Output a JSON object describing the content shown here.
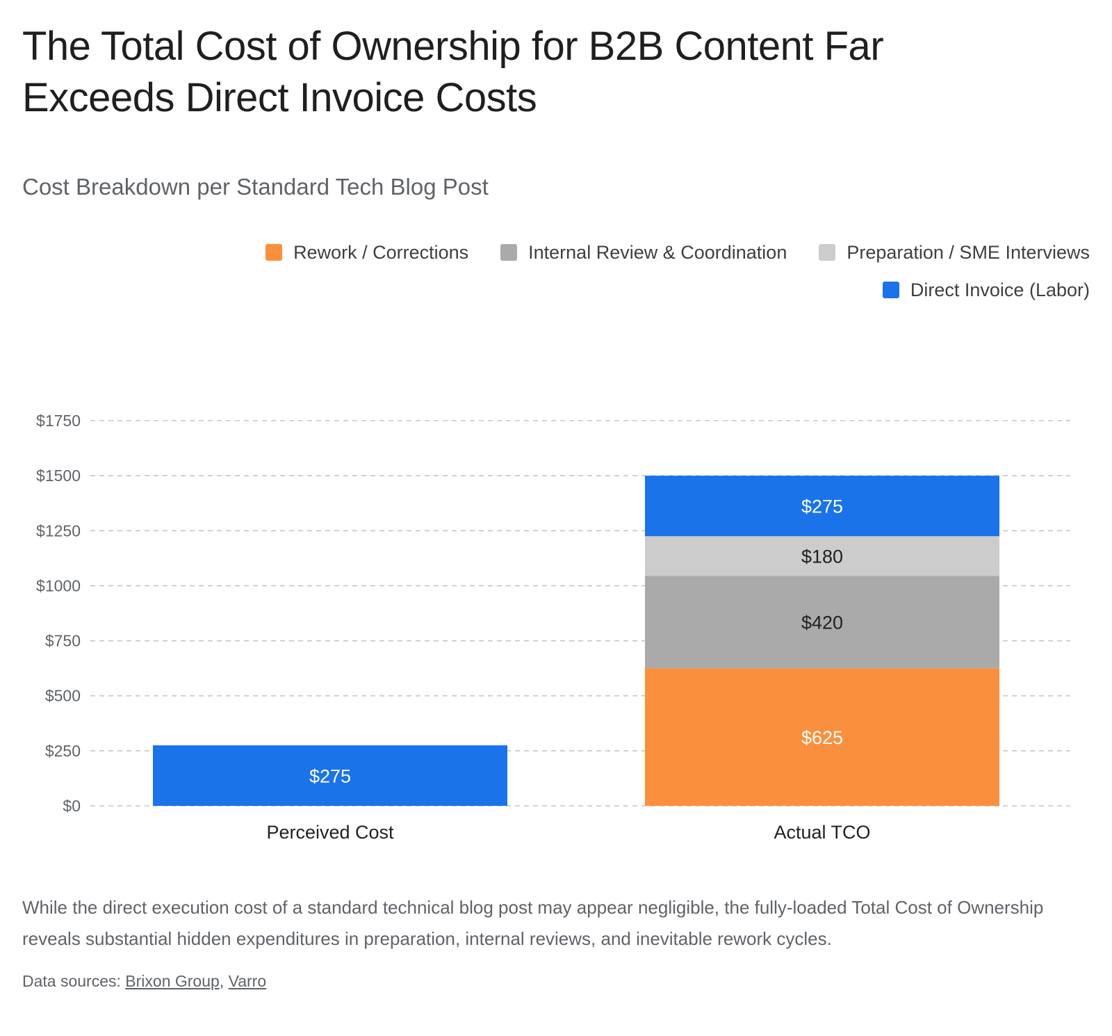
{
  "title": "The Total Cost of Ownership for B2B Content Far Exceeds Direct Invoice Costs",
  "subtitle": "Cost Breakdown per Standard Tech Blog Post",
  "legend": [
    {
      "label": "Rework / Corrections",
      "color": "#fa903e"
    },
    {
      "label": "Internal Review & Coordination",
      "color": "#aaaaaa"
    },
    {
      "label": "Preparation / SME Interviews",
      "color": "#cccccc"
    },
    {
      "label": "Direct Invoice (Labor)",
      "color": "#1a73e8"
    }
  ],
  "chart_data": {
    "type": "bar",
    "stacked": true,
    "categories": [
      "Perceived Cost",
      "Actual TCO"
    ],
    "series": [
      {
        "name": "Rework / Corrections",
        "values": [
          0,
          625
        ],
        "color": "#fa903e",
        "label_color": "#ffffff"
      },
      {
        "name": "Internal Review & Coordination",
        "values": [
          0,
          420
        ],
        "color": "#aaaaaa",
        "label_color": "#202124"
      },
      {
        "name": "Preparation / SME Interviews",
        "values": [
          0,
          180
        ],
        "color": "#cccccc",
        "label_color": "#202124"
      },
      {
        "name": "Direct Invoice (Labor)",
        "values": [
          275,
          275
        ],
        "color": "#1a73e8",
        "label_color": "#ffffff"
      }
    ],
    "ylim": [
      0,
      1750
    ],
    "yticks": [
      0,
      250,
      500,
      750,
      1000,
      1250,
      1500,
      1750
    ],
    "ytick_labels": [
      "$0",
      "$250",
      "$500",
      "$750",
      "$1000",
      "$1250",
      "$1500",
      "$1750"
    ],
    "grid": true,
    "grid_style": "dashed",
    "legend_position": "top-right",
    "value_prefix": "$",
    "xlabel": "",
    "ylabel": ""
  },
  "footnote": "While the direct execution cost of a standard technical blog post may appear negligible, the fully-loaded Total Cost of Ownership reveals substantial hidden expenditures in preparation, internal reviews, and inevitable rework cycles.",
  "sources": {
    "prefix": "Data sources: ",
    "links": [
      "Brixon Group",
      "Varro"
    ],
    "separator": ", "
  }
}
